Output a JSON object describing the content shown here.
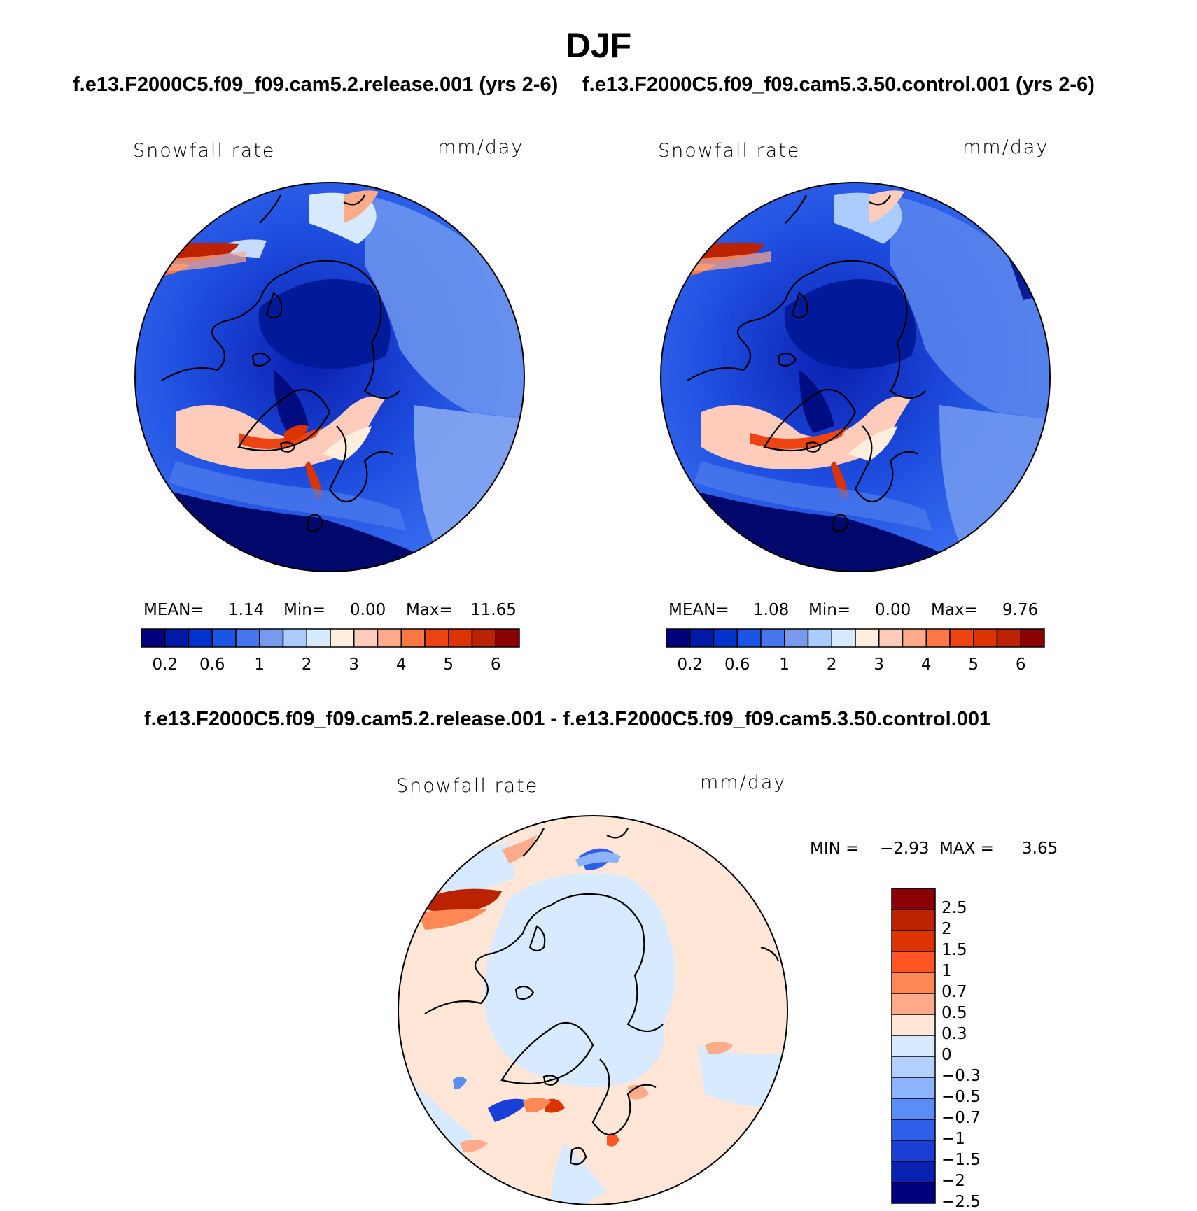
{
  "title": "DJF",
  "subtitles": {
    "left": "f.e13.F2000C5.f09_f09.cam5.2.release.001 (yrs 2-6)",
    "right": "f.e13.F2000C5.f09_f09.cam5.3.50.control.001 (yrs 2-6)",
    "diff": "f.e13.F2000C5.f09_f09.cam5.2.release.001 - f.e13.F2000C5.f09_f09.cam5.3.50.control.001"
  },
  "panels": [
    {
      "variable": "Snowfall rate",
      "units": "mm/day",
      "stats": {
        "mean_label": "MEAN=",
        "mean": "1.14",
        "min_label": "Min=",
        "min": "0.00",
        "max_label": "Max=",
        "max": "11.65"
      }
    },
    {
      "variable": "Snowfall rate",
      "units": "mm/day",
      "stats": {
        "mean_label": "MEAN=",
        "mean": "1.08",
        "min_label": "Min=",
        "min": "0.00",
        "max_label": "Max=",
        "max": "9.76"
      }
    },
    {
      "variable": "Snowfall rate",
      "units": "mm/day",
      "stats": {
        "min_label": "MIN =",
        "min": "−2.93",
        "max_label": "MAX =",
        "max": "3.65"
      }
    }
  ],
  "colorbar_main": {
    "colors": [
      "#00007f",
      "#0019a6",
      "#0033cc",
      "#1a55e6",
      "#4477ee",
      "#7799ee",
      "#aaccff",
      "#d8eaff",
      "#ffeedd",
      "#ffccbb",
      "#ffaa88",
      "#ff7744",
      "#ee4411",
      "#dd3300",
      "#bb2200",
      "#8b0000"
    ],
    "tick_labels": [
      "0.2",
      "0.6",
      "1",
      "2",
      "3",
      "4",
      "5",
      "6"
    ]
  },
  "colorbar_diff": {
    "colors": [
      "#8b0000",
      "#bb2200",
      "#dd3300",
      "#ff5522",
      "#ff8855",
      "#ffaa88",
      "#ffe6d6",
      "#d8eaff",
      "#b3cfff",
      "#8db4ff",
      "#5b8ef5",
      "#2f5ee8",
      "#1a3fd6",
      "#0a22b0",
      "#00007f"
    ],
    "tick_labels": [
      "2.5",
      "2",
      "1.5",
      "1",
      "0.7",
      "0.5",
      "0.3",
      "0",
      "−0.3",
      "−0.5",
      "−0.7",
      "−1",
      "−1.5",
      "−2",
      "−2.5"
    ]
  }
}
